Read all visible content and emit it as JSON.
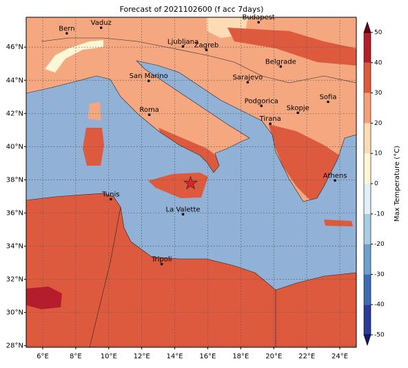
{
  "title": "Forecast of 2021102600 (f acc 7days)",
  "map": {
    "xlim": [
      5,
      25
    ],
    "ylim": [
      27.9,
      47.8
    ],
    "xticks": [
      {
        "value": 6,
        "label": "6°E"
      },
      {
        "value": 8,
        "label": "8°E"
      },
      {
        "value": 10,
        "label": "10°E"
      },
      {
        "value": 12,
        "label": "12°E"
      },
      {
        "value": 14,
        "label": "14°E"
      },
      {
        "value": 16,
        "label": "16°E"
      },
      {
        "value": 18,
        "label": "18°E"
      },
      {
        "value": 20,
        "label": "20°E"
      },
      {
        "value": 22,
        "label": "22°E"
      },
      {
        "value": 24,
        "label": "24°E"
      }
    ],
    "yticks": [
      {
        "value": 28,
        "label": "28°N"
      },
      {
        "value": 30,
        "label": "30°N"
      },
      {
        "value": 32,
        "label": "32°N"
      },
      {
        "value": 34,
        "label": "34°N"
      },
      {
        "value": 36,
        "label": "36°N"
      },
      {
        "value": 38,
        "label": "38°N"
      },
      {
        "value": 40,
        "label": "40°N"
      },
      {
        "value": 42,
        "label": "42°N"
      },
      {
        "value": 44,
        "label": "44°N"
      },
      {
        "value": 46,
        "label": "46°N"
      }
    ],
    "grid": true,
    "cities": [
      {
        "name": "Bern",
        "lon": 7.46,
        "lat": 46.83
      },
      {
        "name": "Vaduz",
        "lon": 9.54,
        "lat": 47.17
      },
      {
        "name": "Budapest",
        "lon": 19.08,
        "lat": 47.5
      },
      {
        "name": "Ljubljana",
        "lon": 14.5,
        "lat": 46.04
      },
      {
        "name": "Zagreb",
        "lon": 15.92,
        "lat": 45.83
      },
      {
        "name": "Belgrade",
        "lon": 20.42,
        "lat": 44.83
      },
      {
        "name": "San Marino",
        "lon": 12.42,
        "lat": 43.96
      },
      {
        "name": "Sarajevo",
        "lon": 18.42,
        "lat": 43.88
      },
      {
        "name": "Sofia",
        "lon": 23.29,
        "lat": 42.7
      },
      {
        "name": "Podgorica",
        "lon": 19.25,
        "lat": 42.46
      },
      {
        "name": "Skopje",
        "lon": 21.46,
        "lat": 42.04
      },
      {
        "name": "Roma",
        "lon": 12.46,
        "lat": 41.92
      },
      {
        "name": "Tirana",
        "lon": 19.79,
        "lat": 41.38
      },
      {
        "name": "Athens",
        "lon": 23.71,
        "lat": 37.96
      },
      {
        "name": "Tunis",
        "lon": 10.13,
        "lat": 36.83
      },
      {
        "name": "La Valette",
        "lon": 14.5,
        "lat": 35.92
      },
      {
        "name": "Tripoli",
        "lon": 13.21,
        "lat": 32.92
      }
    ],
    "marker": {
      "lon": 14.96,
      "lat": 37.79,
      "color": "#e8202a"
    }
  },
  "colorbar": {
    "label": "Max Temperature (°C)",
    "lim": [
      -50,
      50
    ],
    "ticks": [
      -50,
      -40,
      -30,
      -20,
      -10,
      0,
      10,
      20,
      30,
      40,
      50
    ],
    "colors": [
      "#2b3a97",
      "#3c6db1",
      "#6f9fcc",
      "#a7cde3",
      "#dff1f7",
      "#fdf7d6",
      "#fddbb4",
      "#f4a07a",
      "#dd5a3e",
      "#b51d2c"
    ],
    "extend_colors": [
      "#121a6b",
      "#6b0019"
    ]
  }
}
